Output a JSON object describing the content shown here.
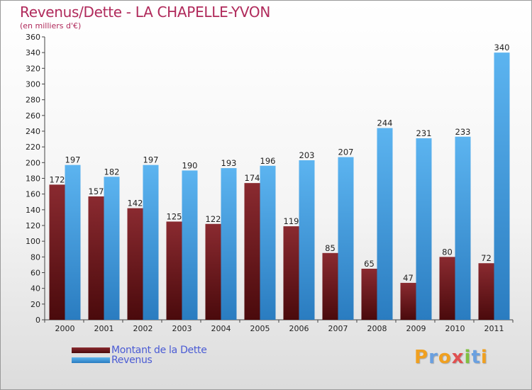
{
  "title": "Revenus/Dette - LA CHAPELLE-YVON",
  "subtitle": "(en milliers d'€)",
  "colors": {
    "dette": "#7a1b1f",
    "revenus": "#4aa6e6",
    "title": "#b02a5b",
    "legend_text": "#4a5bd4"
  },
  "chart_data": {
    "type": "bar",
    "title": "Revenus/Dette - LA CHAPELLE-YVON",
    "ylabel": "(en milliers d'€)",
    "categories": [
      "2000",
      "2001",
      "2002",
      "2003",
      "2004",
      "2005",
      "2006",
      "2007",
      "2008",
      "2009",
      "2010",
      "2011"
    ],
    "series": [
      {
        "name": "Montant de la Dette",
        "values": [
          172,
          157,
          142,
          125,
          122,
          174,
          119,
          85,
          65,
          47,
          80,
          72
        ]
      },
      {
        "name": "Revenus",
        "values": [
          197,
          182,
          197,
          190,
          193,
          196,
          203,
          207,
          244,
          231,
          233,
          340
        ]
      }
    ],
    "ylim": [
      0,
      360
    ],
    "ytick_step": 20,
    "grid": false,
    "legend": "bottom-left"
  },
  "legend": [
    {
      "label": "Montant de la Dette",
      "color": "#7a1b1f"
    },
    {
      "label": "Revenus",
      "color": "#4aa6e6"
    }
  ],
  "logo": {
    "letters": [
      "P",
      "r",
      "o",
      "x",
      "i",
      "t",
      "i"
    ],
    "colors": [
      "#f0a020",
      "#6aa0e0",
      "#f0a020",
      "#e05050",
      "#80c040",
      "#6aa0e0",
      "#f0a020"
    ]
  }
}
